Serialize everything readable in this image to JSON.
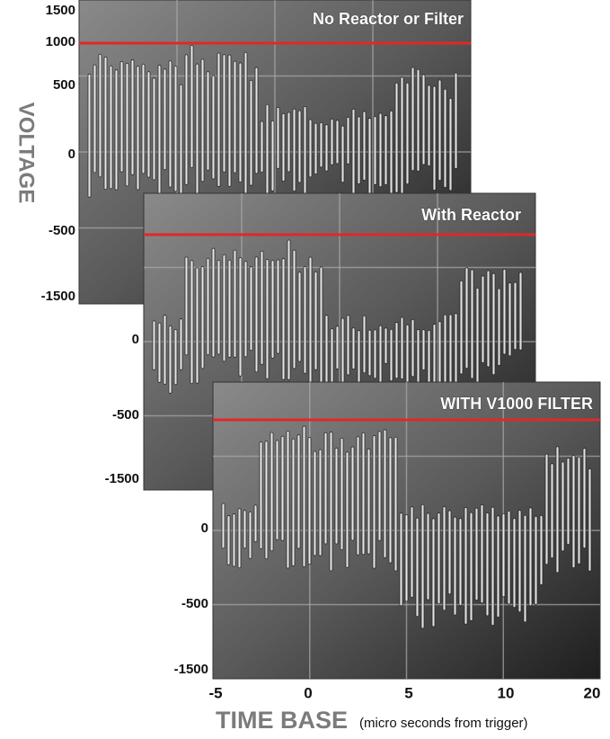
{
  "y_axis_label": "VOLTAGE",
  "panels": [
    {
      "title": "No Reactor or Filter",
      "yticks": [
        "1500",
        "1000",
        "500",
        "0",
        "-500",
        "-1500"
      ]
    },
    {
      "title": "With Reactor",
      "yticks": [
        "0",
        "-500",
        "-1500"
      ]
    },
    {
      "title": "WITH V1000 FILTER",
      "yticks": [
        "0",
        "-500",
        "-1500"
      ]
    }
  ],
  "x_ticks": [
    "-5",
    "0",
    "5",
    "10",
    "20"
  ],
  "x_axis_label": "TIME BASE",
  "x_axis_note": "(micro seconds from trigger)"
}
